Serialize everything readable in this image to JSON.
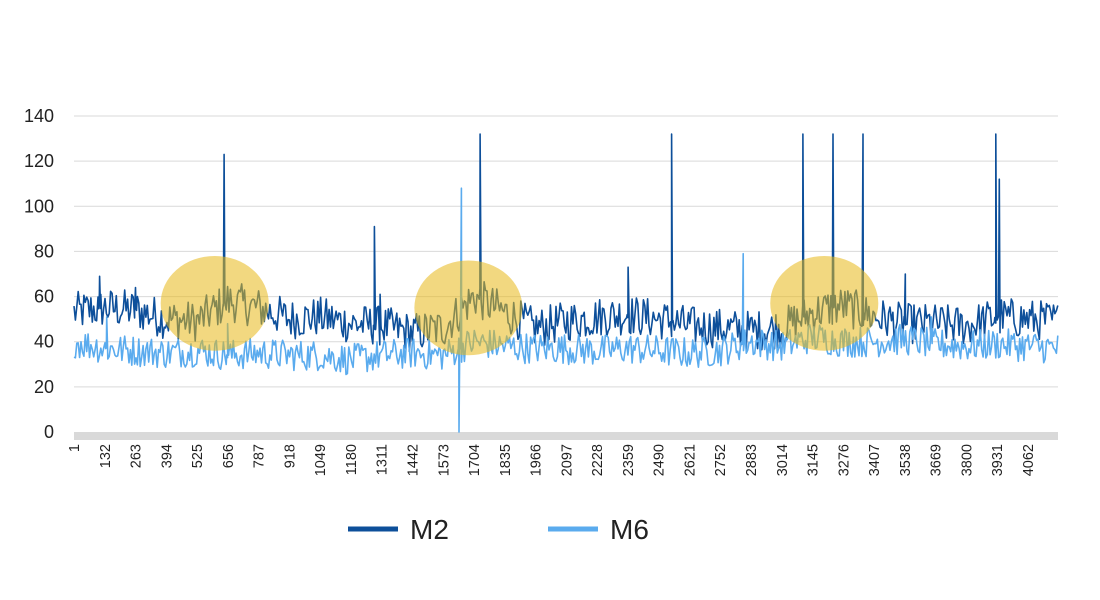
{
  "chart_data": {
    "type": "line",
    "title": "",
    "xlabel": "",
    "ylabel": "",
    "ylim": [
      0,
      140
    ],
    "y_ticks": [
      0,
      20,
      40,
      60,
      80,
      100,
      120,
      140
    ],
    "x_ticks": [
      "1",
      "132",
      "263",
      "394",
      "525",
      "656",
      "787",
      "918",
      "1049",
      "1180",
      "1311",
      "1442",
      "1573",
      "1704",
      "1835",
      "1966",
      "2097",
      "2228",
      "2359",
      "2490",
      "2621",
      "2752",
      "2883",
      "3014",
      "3145",
      "3276",
      "3407",
      "3538",
      "3669",
      "3800",
      "3931",
      "4062"
    ],
    "xlim": [
      1,
      4190
    ],
    "grid": "horizontal",
    "legend_position": "bottom",
    "series": [
      {
        "name": "M2",
        "color": "#0d4f9a",
        "baseline": [
          [
            1,
            53
          ],
          [
            130,
            55
          ],
          [
            263,
            54
          ],
          [
            394,
            50
          ],
          [
            525,
            49
          ],
          [
            656,
            58
          ],
          [
            787,
            55
          ],
          [
            918,
            50
          ],
          [
            1049,
            51
          ],
          [
            1180,
            48
          ],
          [
            1311,
            47
          ],
          [
            1442,
            44
          ],
          [
            1573,
            46
          ],
          [
            1704,
            60
          ],
          [
            1835,
            53
          ],
          [
            1966,
            46
          ],
          [
            2097,
            49
          ],
          [
            2228,
            51
          ],
          [
            2359,
            52
          ],
          [
            2490,
            50
          ],
          [
            2621,
            47
          ],
          [
            2752,
            46
          ],
          [
            2883,
            45
          ],
          [
            3014,
            46
          ],
          [
            3145,
            53
          ],
          [
            3276,
            56
          ],
          [
            3407,
            51
          ],
          [
            3538,
            48
          ],
          [
            3669,
            48
          ],
          [
            3800,
            47
          ],
          [
            3931,
            51
          ],
          [
            4062,
            50
          ],
          [
            4190,
            49
          ]
        ],
        "peaks": [
          [
            110,
            69
          ],
          [
            263,
            64
          ],
          [
            640,
            123
          ],
          [
            1280,
            91
          ],
          [
            1304,
            61
          ],
          [
            1730,
            132
          ],
          [
            2360,
            73
          ],
          [
            2545,
            132
          ],
          [
            3104,
            132
          ],
          [
            3232,
            132
          ],
          [
            3360,
            132
          ],
          [
            3540,
            70
          ],
          [
            3925,
            132
          ],
          [
            3940,
            112
          ]
        ]
      },
      {
        "name": "M6",
        "color": "#5aabee",
        "baseline": [
          [
            1,
            40
          ],
          [
            130,
            37
          ],
          [
            263,
            36
          ],
          [
            394,
            35
          ],
          [
            525,
            36
          ],
          [
            656,
            34
          ],
          [
            787,
            35
          ],
          [
            918,
            34
          ],
          [
            1049,
            34
          ],
          [
            1180,
            32
          ],
          [
            1311,
            34
          ],
          [
            1442,
            35
          ],
          [
            1573,
            34
          ],
          [
            1704,
            40
          ],
          [
            1835,
            38
          ],
          [
            1966,
            37
          ],
          [
            2097,
            37
          ],
          [
            2228,
            36
          ],
          [
            2359,
            37
          ],
          [
            2490,
            36
          ],
          [
            2621,
            35
          ],
          [
            2752,
            36
          ],
          [
            2883,
            40
          ],
          [
            3014,
            38
          ],
          [
            3145,
            42
          ],
          [
            3276,
            40
          ],
          [
            3407,
            40
          ],
          [
            3538,
            41
          ],
          [
            3669,
            39
          ],
          [
            3800,
            38
          ],
          [
            3931,
            39
          ],
          [
            4062,
            38
          ],
          [
            4190,
            37
          ]
        ],
        "peaks": [
          [
            140,
            51
          ],
          [
            655,
            48
          ],
          [
            1650,
            108
          ],
          [
            2850,
            79
          ],
          [
            3650,
            51
          ]
        ],
        "dips": [
          [
            1640,
            0
          ]
        ]
      }
    ],
    "annotations": [
      {
        "type": "ellipse",
        "x_center": 600,
        "y_center": 57,
        "x_radius": 230,
        "y_radius": 21
      },
      {
        "type": "ellipse",
        "x_center": 1680,
        "y_center": 55,
        "x_radius": 230,
        "y_radius": 21
      },
      {
        "type": "ellipse",
        "x_center": 3195,
        "y_center": 57,
        "x_radius": 230,
        "y_radius": 21
      }
    ],
    "highlight_color": "#e8b818"
  }
}
